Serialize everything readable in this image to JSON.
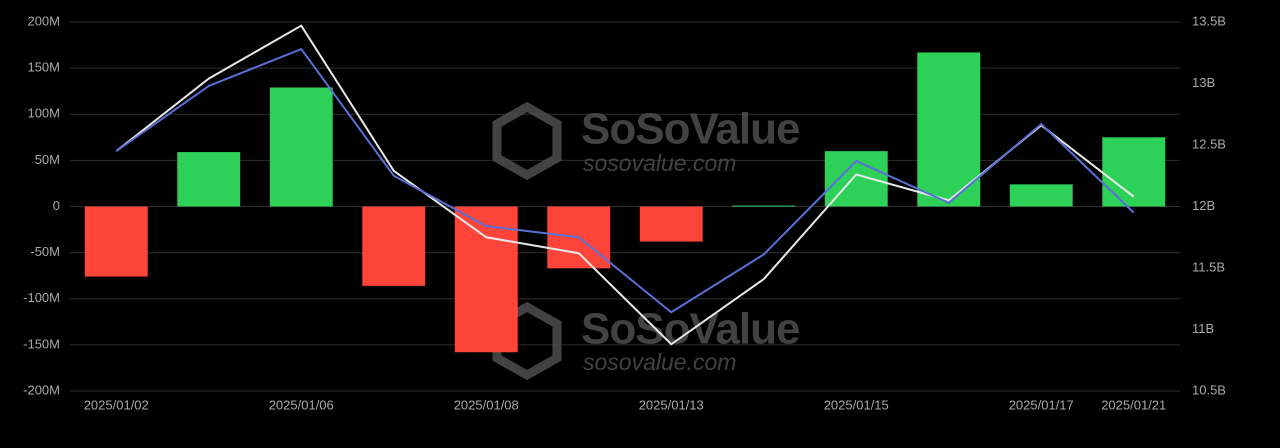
{
  "chart_data": {
    "type": "bar",
    "categories": [
      "2025/01/02",
      null,
      "2025/01/06",
      null,
      "2025/01/08",
      null,
      "2025/01/13",
      null,
      "2025/01/15",
      null,
      "2025/01/17",
      "2025/01/21"
    ],
    "series": [
      {
        "type": "bar",
        "positive_color": "#2ed158",
        "negative_color": "#ff453a",
        "values": [
          -76,
          59,
          129,
          -86,
          -158,
          -67,
          -38,
          1,
          60,
          167,
          24,
          75
        ]
      },
      {
        "type": "line",
        "axis": "y2",
        "color": "#e8e8e8",
        "values": [
          12.45,
          13.04,
          13.47,
          12.29,
          11.75,
          11.62,
          10.88,
          11.41,
          12.26,
          12.05,
          12.66,
          12.08
        ]
      },
      {
        "type": "line",
        "axis": "y2",
        "color": "#5b6fd6",
        "values": [
          12.45,
          12.98,
          13.28,
          12.25,
          11.84,
          11.75,
          11.14,
          11.61,
          12.37,
          12.03,
          12.67,
          11.95
        ]
      }
    ],
    "ylim": [
      -200,
      200
    ],
    "yticks": [
      {
        "value": -200,
        "label": "-200M"
      },
      {
        "value": -150,
        "label": "-150M"
      },
      {
        "value": -100,
        "label": "-100M"
      },
      {
        "value": -50,
        "label": "-50M"
      },
      0,
      {
        "value": 50,
        "label": "50M"
      },
      {
        "value": 100,
        "label": "100M"
      },
      {
        "value": 150,
        "label": "150M"
      },
      {
        "value": 200,
        "label": "200M"
      }
    ],
    "y2lim": [
      10.5,
      13.5
    ],
    "y2ticks": [
      {
        "value": 10.5,
        "label": "10.5B"
      },
      {
        "value": 11,
        "label": "11B"
      },
      {
        "value": 11.5,
        "label": "11.5B"
      },
      {
        "value": 12,
        "label": "12B"
      },
      {
        "value": 12.5,
        "label": "12.5B"
      },
      {
        "value": 13,
        "label": "13B"
      },
      {
        "value": 13.5,
        "label": "13.5B"
      }
    ],
    "grid": true,
    "watermark": {
      "brand": "SoSoValue",
      "url": "sosovalue.com"
    }
  }
}
